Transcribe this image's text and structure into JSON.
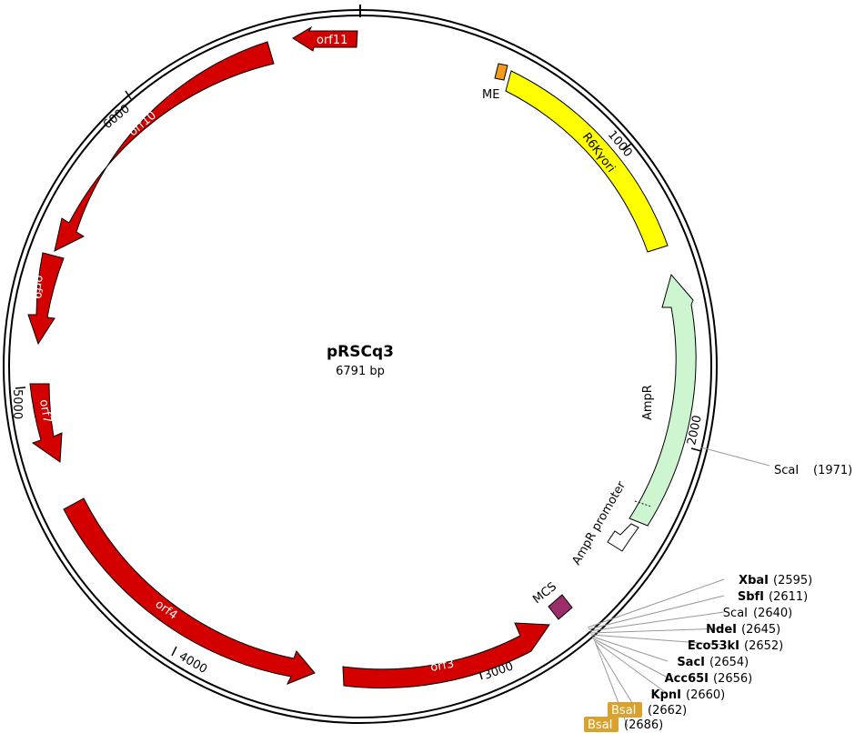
{
  "plasmid": {
    "name": "pRSCq3",
    "length_label": "6791 bp",
    "length": 6791
  },
  "ticks": [
    "1000",
    "2000",
    "3000",
    "4000",
    "5000",
    "6000"
  ],
  "features": [
    {
      "label": "ME",
      "color": "#f39a1f",
      "kind": "block"
    },
    {
      "label": "R6Kγori",
      "color": "#ffff00",
      "kind": "block"
    },
    {
      "label": "AmpR",
      "color": "#ccf5d0",
      "kind": "arrow"
    },
    {
      "label": "AmpR promoter",
      "color": "#ffffff",
      "kind": "arrow"
    },
    {
      "label": "MCS",
      "color": "#9b2d6b",
      "kind": "block"
    },
    {
      "label": "orf3",
      "color": "#d40000",
      "kind": "arrow"
    },
    {
      "label": "orf4",
      "color": "#d40000",
      "kind": "arrow"
    },
    {
      "label": "orf7",
      "color": "#d40000",
      "kind": "arrow"
    },
    {
      "label": "orf9",
      "color": "#d40000",
      "kind": "arrow"
    },
    {
      "label": "orf10",
      "color": "#d40000",
      "kind": "arrow"
    },
    {
      "label": "orf11",
      "color": "#d40000",
      "kind": "arrow"
    }
  ],
  "sites": [
    {
      "name": "ScaI",
      "pos": "(1971)",
      "bold": false,
      "boxed": false
    },
    {
      "name": "XbaI",
      "pos": "(2595)",
      "bold": true,
      "boxed": false
    },
    {
      "name": "SbfI",
      "pos": "(2611)",
      "bold": true,
      "boxed": false
    },
    {
      "name": "ScaI",
      "pos": "(2640)",
      "bold": false,
      "boxed": false
    },
    {
      "name": "NdeI",
      "pos": "(2645)",
      "bold": true,
      "boxed": false
    },
    {
      "name": "Eco53kI",
      "pos": "(2652)",
      "bold": true,
      "boxed": false
    },
    {
      "name": "SacI",
      "pos": "(2654)",
      "bold": true,
      "boxed": false
    },
    {
      "name": "Acc65I",
      "pos": "(2656)",
      "bold": true,
      "boxed": false
    },
    {
      "name": "KpnI",
      "pos": "(2660)",
      "bold": true,
      "boxed": false
    },
    {
      "name": "BsaI",
      "pos": "(2662)",
      "bold": false,
      "boxed": true
    },
    {
      "name": "BsaI",
      "pos": "(2686)",
      "bold": false,
      "boxed": true
    }
  ],
  "colors": {
    "orf": "#d40000",
    "bsai_box": "#d9a12d",
    "backbone": "#000000"
  }
}
